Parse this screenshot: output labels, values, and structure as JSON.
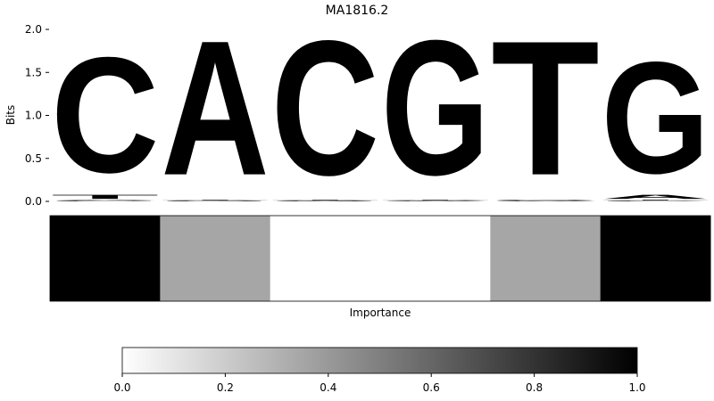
{
  "chart_data": [
    {
      "type": "sequence-logo",
      "title": "MA1816.2",
      "ylabel": "Bits",
      "ylim": [
        0,
        2.0
      ],
      "yticks": [
        "0.0",
        "0.5",
        "1.0",
        "1.5",
        "2.0"
      ],
      "grid": false,
      "positions": [
        {
          "index": 1,
          "letters": [
            {
              "base": "G",
              "bits": 0.01
            },
            {
              "base": "A",
              "bits": 0.01
            },
            {
              "base": "T",
              "bits": 0.06
            },
            {
              "base": "C",
              "bits": 1.67
            }
          ]
        },
        {
          "index": 2,
          "letters": [
            {
              "base": "C",
              "bits": 0.005
            },
            {
              "base": "G",
              "bits": 0.005
            },
            {
              "base": "T",
              "bits": 0.005
            },
            {
              "base": "A",
              "bits": 1.95
            }
          ]
        },
        {
          "index": 3,
          "letters": [
            {
              "base": "A",
              "bits": 0.005
            },
            {
              "base": "G",
              "bits": 0.005
            },
            {
              "base": "T",
              "bits": 0.005
            },
            {
              "base": "C",
              "bits": 1.95
            }
          ]
        },
        {
          "index": 4,
          "letters": [
            {
              "base": "A",
              "bits": 0.005
            },
            {
              "base": "C",
              "bits": 0.005
            },
            {
              "base": "T",
              "bits": 0.005
            },
            {
              "base": "G",
              "bits": 1.95
            }
          ]
        },
        {
          "index": 5,
          "letters": [
            {
              "base": "A",
              "bits": 0.005
            },
            {
              "base": "C",
              "bits": 0.005
            },
            {
              "base": "G",
              "bits": 0.005
            },
            {
              "base": "T",
              "bits": 1.95
            }
          ]
        },
        {
          "index": 6,
          "letters": [
            {
              "base": "C",
              "bits": 0.01
            },
            {
              "base": "T",
              "bits": 0.01
            },
            {
              "base": "A",
              "bits": 0.06
            },
            {
              "base": "G",
              "bits": 1.62
            }
          ]
        }
      ]
    },
    {
      "type": "heatmap",
      "xlabel": "Importance",
      "values": [
        1.0,
        0.35,
        0.0,
        0.0,
        0.35,
        1.0
      ],
      "colormap": "grayscale (0 = white, 1 = black)",
      "colorbar": {
        "range": [
          0,
          1
        ],
        "ticks": [
          "0.0",
          "0.2",
          "0.4",
          "0.6",
          "0.8",
          "1.0"
        ]
      }
    }
  ],
  "colors": {
    "A": "#4ea84c",
    "C": "#4b4bff",
    "G": "#ffc14b",
    "T": "#ff4b4b"
  }
}
